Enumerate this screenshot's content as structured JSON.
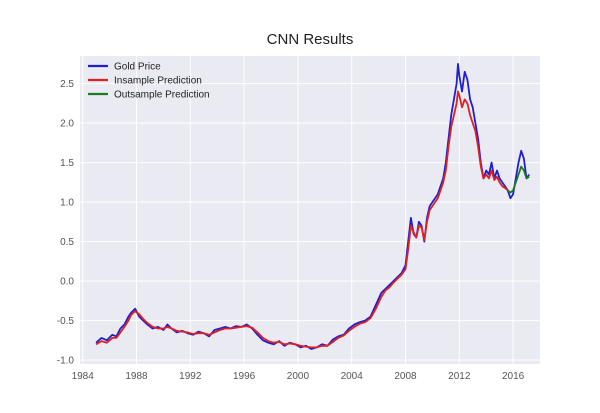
{
  "chart_data": {
    "type": "line",
    "title": "CNN Results",
    "xlabel": "",
    "ylabel": "",
    "xlim": [
      1983.8,
      2018.0
    ],
    "ylim": [
      -1.05,
      2.85
    ],
    "grid": true,
    "legend_position": "top-left",
    "background_color": "#eaeaf2",
    "x_ticks": [
      1984,
      1988,
      1992,
      1996,
      2000,
      2004,
      2008,
      2012,
      2016
    ],
    "y_ticks": [
      -1.0,
      -0.5,
      0.0,
      0.5,
      1.0,
      1.5,
      2.0,
      2.5
    ],
    "y_tick_labels": [
      "-1.0",
      "-0.5",
      "0.0",
      "0.5",
      "1.0",
      "1.5",
      "2.0",
      "2.5"
    ],
    "series": [
      {
        "name": "Gold Price",
        "color": "#1f1fd1",
        "x": [
          1985.0,
          1985.4,
          1985.8,
          1986.2,
          1986.5,
          1986.8,
          1987.1,
          1987.4,
          1987.6,
          1987.9,
          1988.2,
          1988.5,
          1988.8,
          1989.2,
          1989.6,
          1990.0,
          1990.3,
          1990.6,
          1991.0,
          1991.4,
          1991.8,
          1992.2,
          1992.6,
          1993.0,
          1993.4,
          1993.8,
          1994.2,
          1994.6,
          1995.0,
          1995.4,
          1995.8,
          1996.2,
          1996.6,
          1997.0,
          1997.4,
          1997.8,
          1998.2,
          1998.6,
          1999.0,
          1999.4,
          1999.8,
          2000.2,
          2000.6,
          2001.0,
          2001.4,
          2001.8,
          2002.2,
          2002.6,
          2003.0,
          2003.4,
          2003.8,
          2004.2,
          2004.6,
          2005.0,
          2005.4,
          2005.8,
          2006.2,
          2006.5,
          2006.8,
          2007.1,
          2007.4,
          2007.7,
          2008.0,
          2008.2,
          2008.4,
          2008.6,
          2008.8,
          2009.0,
          2009.2,
          2009.4,
          2009.6,
          2009.8,
          2010.0,
          2010.2,
          2010.4,
          2010.6,
          2010.8,
          2011.0,
          2011.2,
          2011.4,
          2011.6,
          2011.8,
          2011.9,
          2012.0,
          2012.2,
          2012.4,
          2012.6,
          2012.8,
          2013.0,
          2013.2,
          2013.4,
          2013.6,
          2013.8,
          2014.0,
          2014.2,
          2014.4,
          2014.6,
          2014.8,
          2015.0,
          2015.2,
          2015.4,
          2015.6,
          2015.8,
          2016.0,
          2016.2,
          2016.4,
          2016.6,
          2016.8,
          2017.0,
          2017.2
        ],
        "y": [
          -0.78,
          -0.72,
          -0.75,
          -0.68,
          -0.7,
          -0.6,
          -0.55,
          -0.45,
          -0.4,
          -0.35,
          -0.45,
          -0.5,
          -0.55,
          -0.6,
          -0.58,
          -0.62,
          -0.55,
          -0.6,
          -0.65,
          -0.63,
          -0.66,
          -0.68,
          -0.64,
          -0.66,
          -0.7,
          -0.62,
          -0.6,
          -0.58,
          -0.6,
          -0.57,
          -0.58,
          -0.55,
          -0.6,
          -0.68,
          -0.75,
          -0.78,
          -0.8,
          -0.76,
          -0.82,
          -0.78,
          -0.8,
          -0.84,
          -0.82,
          -0.86,
          -0.84,
          -0.8,
          -0.82,
          -0.74,
          -0.7,
          -0.68,
          -0.6,
          -0.55,
          -0.52,
          -0.5,
          -0.45,
          -0.3,
          -0.15,
          -0.1,
          -0.05,
          0.0,
          0.05,
          0.1,
          0.2,
          0.5,
          0.8,
          0.6,
          0.55,
          0.75,
          0.7,
          0.5,
          0.8,
          0.95,
          1.0,
          1.05,
          1.1,
          1.2,
          1.3,
          1.5,
          1.8,
          2.1,
          2.3,
          2.5,
          2.75,
          2.6,
          2.4,
          2.65,
          2.55,
          2.3,
          2.2,
          2.0,
          1.8,
          1.5,
          1.3,
          1.4,
          1.35,
          1.5,
          1.3,
          1.4,
          1.3,
          1.25,
          1.2,
          1.15,
          1.05,
          1.1,
          1.3,
          1.5,
          1.65,
          1.55,
          1.3,
          1.35
        ]
      },
      {
        "name": "Insample Prediction",
        "color": "#e02020",
        "x": [
          1985.0,
          1985.4,
          1985.8,
          1986.2,
          1986.5,
          1986.8,
          1987.1,
          1987.4,
          1987.6,
          1987.9,
          1988.2,
          1988.5,
          1988.8,
          1989.2,
          1989.6,
          1990.0,
          1990.3,
          1990.6,
          1991.0,
          1991.4,
          1991.8,
          1992.2,
          1992.6,
          1993.0,
          1993.4,
          1993.8,
          1994.2,
          1994.6,
          1995.0,
          1995.4,
          1995.8,
          1996.2,
          1996.6,
          1997.0,
          1997.4,
          1997.8,
          1998.2,
          1998.6,
          1999.0,
          1999.4,
          1999.8,
          2000.2,
          2000.6,
          2001.0,
          2001.4,
          2001.8,
          2002.2,
          2002.6,
          2003.0,
          2003.4,
          2003.8,
          2004.2,
          2004.6,
          2005.0,
          2005.4,
          2005.8,
          2006.2,
          2006.5,
          2006.8,
          2007.1,
          2007.4,
          2007.7,
          2008.0,
          2008.2,
          2008.4,
          2008.6,
          2008.8,
          2009.0,
          2009.2,
          2009.4,
          2009.6,
          2009.8,
          2010.0,
          2010.2,
          2010.4,
          2010.6,
          2010.8,
          2011.0,
          2011.2,
          2011.4,
          2011.6,
          2011.8,
          2011.9,
          2012.0,
          2012.2,
          2012.4,
          2012.6,
          2012.8,
          2013.0,
          2013.2,
          2013.4,
          2013.6,
          2013.8,
          2014.0,
          2014.2,
          2014.4,
          2014.6,
          2014.8,
          2015.0,
          2015.2,
          2015.4,
          2015.6
        ],
        "y": [
          -0.8,
          -0.76,
          -0.78,
          -0.72,
          -0.72,
          -0.65,
          -0.58,
          -0.5,
          -0.43,
          -0.38,
          -0.42,
          -0.48,
          -0.53,
          -0.58,
          -0.6,
          -0.6,
          -0.58,
          -0.6,
          -0.63,
          -0.64,
          -0.65,
          -0.67,
          -0.66,
          -0.66,
          -0.68,
          -0.65,
          -0.62,
          -0.6,
          -0.6,
          -0.59,
          -0.58,
          -0.57,
          -0.59,
          -0.65,
          -0.72,
          -0.76,
          -0.78,
          -0.77,
          -0.8,
          -0.79,
          -0.8,
          -0.82,
          -0.83,
          -0.84,
          -0.84,
          -0.82,
          -0.82,
          -0.77,
          -0.72,
          -0.69,
          -0.63,
          -0.58,
          -0.54,
          -0.52,
          -0.47,
          -0.35,
          -0.2,
          -0.12,
          -0.08,
          -0.02,
          0.03,
          0.08,
          0.15,
          0.4,
          0.7,
          0.62,
          0.55,
          0.7,
          0.68,
          0.52,
          0.75,
          0.9,
          0.95,
          1.0,
          1.05,
          1.15,
          1.25,
          1.4,
          1.7,
          1.95,
          2.1,
          2.25,
          2.4,
          2.35,
          2.2,
          2.3,
          2.25,
          2.1,
          2.0,
          1.9,
          1.7,
          1.45,
          1.3,
          1.35,
          1.3,
          1.4,
          1.28,
          1.32,
          1.25,
          1.2,
          1.18,
          1.15
        ]
      },
      {
        "name": "Outsample Prediction",
        "color": "#1f7a1f",
        "x": [
          2015.6,
          2015.8,
          2016.0,
          2016.2,
          2016.4,
          2016.6,
          2016.8,
          2017.0,
          2017.2
        ],
        "y": [
          1.15,
          1.12,
          1.15,
          1.25,
          1.35,
          1.45,
          1.4,
          1.3,
          1.32
        ]
      }
    ]
  }
}
